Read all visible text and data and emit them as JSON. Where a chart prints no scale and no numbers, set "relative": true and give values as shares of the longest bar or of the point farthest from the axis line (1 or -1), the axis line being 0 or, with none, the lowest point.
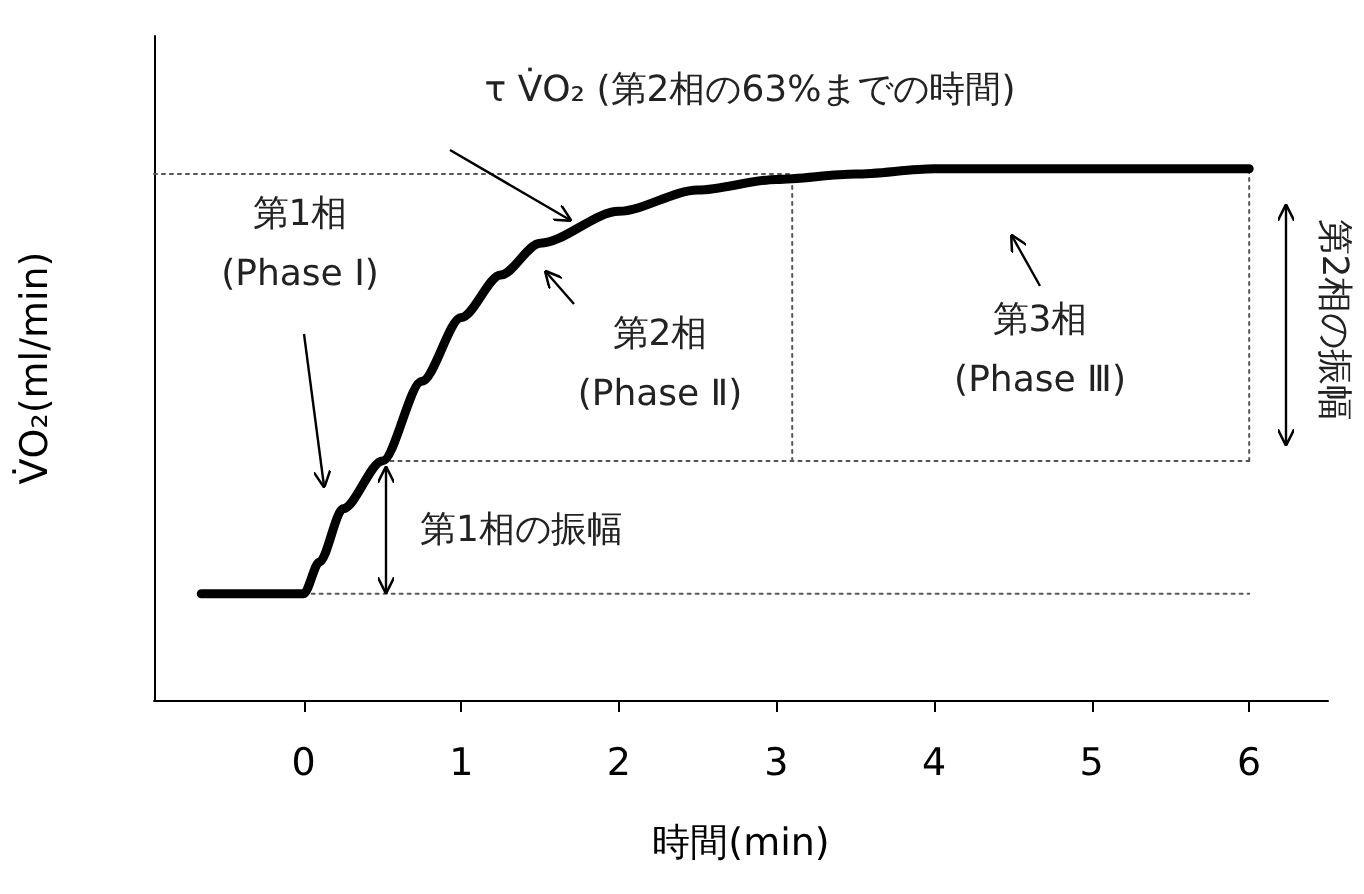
{
  "chart_data": {
    "type": "line",
    "relative": true,
    "xlabel": "時間(min)",
    "ylabel": "V̇O₂(ml/min)",
    "xlim": [
      -0.95,
      6.5
    ],
    "xticks": [
      0,
      1,
      2,
      3,
      4,
      5,
      6
    ],
    "tick_labels": "x",
    "series": [
      {
        "color": "#000000",
        "x": [
          -0.65,
          0,
          0.1,
          0.25,
          0.5,
          0.75,
          1,
          1.25,
          1.5,
          2,
          2.5,
          3,
          3.5,
          4,
          6
        ],
        "values": [
          0.2,
          0.2,
          0.26,
          0.36,
          0.45,
          0.6,
          0.72,
          0.8,
          0.86,
          0.92,
          0.96,
          0.98,
          0.99,
          1,
          1
        ]
      },
      {
        "color": "#555555",
        "line_style": "dotted",
        "x": [
          0,
          6
        ],
        "values": [
          0.2,
          0.2
        ]
      },
      {
        "color": "#555555",
        "line_style": "dotted",
        "x": [
          0.5,
          6
        ],
        "values": [
          0.45,
          0.45
        ]
      },
      {
        "color": "#555555",
        "line_style": "dotted",
        "x": [
          -0.95,
          3.1
        ],
        "values": [
          0.99,
          0.99
        ]
      },
      {
        "color": "#555555",
        "line_style": "dotted",
        "x": [
          3.1,
          3.1
        ],
        "values": [
          0.45,
          0.99
        ]
      },
      {
        "color": "#555555",
        "line_style": "dotted",
        "x": [
          6,
          6
        ],
        "values": [
          0.45,
          1
        ]
      }
    ],
    "annotations": [
      "τ V̇O₂ (第2相の63%までの時間)",
      "第1相\n(Phase Ⅰ)",
      "第2相\n(Phase Ⅱ)",
      "第3相\n(Phase Ⅲ)",
      "第1相の振幅",
      "第2相の振幅"
    ]
  }
}
